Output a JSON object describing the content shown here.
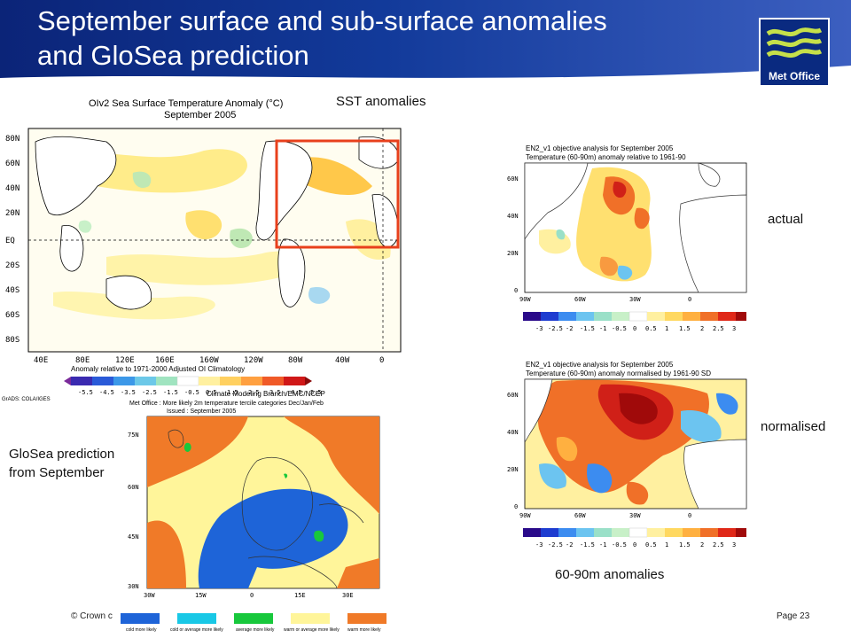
{
  "slide": {
    "title_line1": "September surface and sub-surface anomalies",
    "title_line2": "and GloSea prediction",
    "logo_text": "Met Office",
    "labels": {
      "sst": "SST anomalies",
      "actual": "actual",
      "normalised": "normalised",
      "glosea": "GloSea prediction from September",
      "subsurface": "60-90m anomalies"
    },
    "footer_left": "© Crown c",
    "footer_right": "Page 23"
  },
  "sst_map": {
    "title1": "OIv2 Sea Surface Temperature Anomaly (°C)",
    "title2": "September 2005",
    "lat_ticks": [
      "80N",
      "60N",
      "40N",
      "20N",
      "EQ",
      "20S",
      "40S",
      "60S",
      "80S"
    ],
    "lon_ticks": [
      "40E",
      "80E",
      "120E",
      "160E",
      "160W",
      "120W",
      "80W",
      "40W",
      "0"
    ],
    "colorbar_ticks": [
      "-5.5",
      "-4.5",
      "-3.5",
      "-2.5",
      "-1.5",
      "-0.5",
      "0.5",
      "1.5",
      "2.5",
      "3.5",
      "4.5",
      "5.5"
    ],
    "caption": "Anomaly relative to 1971-2000 Adjusted OI Climatology",
    "credit": "GrADS: COLA/IGES"
  },
  "actual_map": {
    "title1": "EN2_v1 objective analysis for September 2005",
    "title2": "Temperature (60-90m) anomaly relative to 1961-90",
    "lat_ticks": [
      "60N",
      "40N",
      "20N",
      "0"
    ],
    "lon_ticks": [
      "90W",
      "60W",
      "30W",
      "0"
    ],
    "colorbar_ticks": [
      "-3",
      "-2.5",
      "-2",
      "-1.5",
      "-1",
      "-0.5",
      "0",
      "0.5",
      "1",
      "1.5",
      "2",
      "2.5",
      "3"
    ]
  },
  "normalised_map": {
    "title1": "EN2_v1 objective analysis for September 2005",
    "title2": "Temperature (60-90m) anomaly normalised by 1961-90 SD",
    "lat_ticks": [
      "60N",
      "40N",
      "20N",
      "0"
    ],
    "lon_ticks": [
      "90W",
      "60W",
      "30W",
      "0"
    ],
    "colorbar_ticks": [
      "-3",
      "-2.5",
      "-2",
      "-1.5",
      "-1",
      "-0.5",
      "0",
      "0.5",
      "1",
      "1.5",
      "2",
      "2.5",
      "3"
    ]
  },
  "glosea_map": {
    "title1": "Climate Modeling Branch/EMC/NCEP",
    "title2": "Met Office : More likely 2m temperature tercile categories Dec/Jan/Feb",
    "title3": "Issued : September 2005",
    "lat_ticks": [
      "75N",
      "60N",
      "45N",
      "30N"
    ],
    "lon_ticks": [
      "30W",
      "15W",
      "0",
      "15E",
      "30E"
    ],
    "legend": [
      {
        "label": "cold more likely",
        "color": "#1e64d8"
      },
      {
        "label": "cold or average more likely",
        "color": "#19c8e6"
      },
      {
        "label": "average more likely",
        "color": "#18c83c"
      },
      {
        "label": "warm or average more likely",
        "color": "#fff59a"
      },
      {
        "label": "warm more likely",
        "color": "#f07a28"
      }
    ]
  },
  "colors": {
    "header_blue": "#0b2478",
    "highlight_box": "#e8401c",
    "anomaly_scale": [
      "#2a0a8a",
      "#1e3cd0",
      "#3c8cf0",
      "#6cc4f0",
      "#9ae0c8",
      "#c8f0c8",
      "#ffffff",
      "#fff0a0",
      "#ffd860",
      "#ffb040",
      "#f07028",
      "#e02818",
      "#a00a0a"
    ]
  }
}
